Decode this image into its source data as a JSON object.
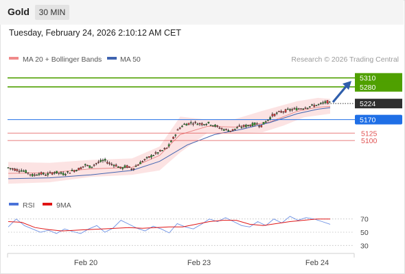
{
  "header": {
    "symbol": "Gold",
    "timeframe": "30 MIN",
    "datetime": "Tuesday, February 24, 2026 2:10:12 AM CET"
  },
  "legend": {
    "ma20_bb": "MA 20 + Bollinger Bands",
    "ma50": "MA 50",
    "copyright": "Research © 2026 Trading Central",
    "ma20_color": "#f08a8a",
    "ma50_color": "#3f63b0"
  },
  "chart_data": [
    {
      "type": "candlestick",
      "title": "",
      "price_range": [
        4935,
        5330
      ],
      "x_ticks": [
        "Feb 20",
        "Feb 23",
        "Feb 24"
      ],
      "levels": [
        {
          "label": "5310",
          "value": 5310,
          "color": "#4fa000",
          "kind": "resistance"
        },
        {
          "label": "5280",
          "value": 5280,
          "color": "#4fa000",
          "kind": "resistance"
        },
        {
          "label": "5224",
          "value": 5224,
          "color": "#333333",
          "kind": "last-price"
        },
        {
          "label": "5170",
          "value": 5170,
          "color": "#1f6fe6",
          "kind": "pivot"
        },
        {
          "label": "5125",
          "value": 5125,
          "color": "#e05050",
          "kind": "support"
        },
        {
          "label": "5100",
          "value": 5100,
          "color": "#e05050",
          "kind": "support"
        }
      ],
      "path_points": [
        [
          0,
          5009
        ],
        [
          6,
          5002
        ],
        [
          10,
          5000
        ],
        [
          14,
          4993
        ],
        [
          18,
          4982
        ],
        [
          22,
          4990
        ],
        [
          28,
          4986
        ],
        [
          34,
          4994
        ],
        [
          40,
          4988
        ],
        [
          46,
          4997
        ],
        [
          52,
          5006
        ],
        [
          56,
          5018
        ],
        [
          60,
          5011
        ],
        [
          64,
          5024
        ],
        [
          70,
          5034
        ],
        [
          74,
          5022
        ],
        [
          78,
          5018
        ],
        [
          82,
          5006
        ],
        [
          86,
          5014
        ],
        [
          90,
          5004
        ],
        [
          94,
          5018
        ],
        [
          98,
          5032
        ],
        [
          104,
          5048
        ],
        [
          110,
          5062
        ],
        [
          116,
          5076
        ],
        [
          120,
          5108
        ],
        [
          124,
          5140
        ],
        [
          128,
          5154
        ],
        [
          134,
          5160
        ],
        [
          140,
          5156
        ],
        [
          146,
          5158
        ],
        [
          150,
          5150
        ],
        [
          156,
          5138
        ],
        [
          162,
          5133
        ],
        [
          168,
          5145
        ],
        [
          174,
          5150
        ],
        [
          180,
          5156
        ],
        [
          184,
          5150
        ],
        [
          188,
          5166
        ],
        [
          192,
          5184
        ],
        [
          198,
          5196
        ],
        [
          204,
          5202
        ],
        [
          210,
          5206
        ],
        [
          216,
          5211
        ],
        [
          222,
          5217
        ],
        [
          228,
          5223
        ],
        [
          232,
          5230
        ],
        [
          234,
          5224
        ]
      ],
      "ma50": [
        [
          0,
          4972
        ],
        [
          30,
          4975
        ],
        [
          60,
          4985
        ],
        [
          90,
          5000
        ],
        [
          110,
          5030
        ],
        [
          130,
          5085
        ],
        [
          150,
          5120
        ],
        [
          170,
          5138
        ],
        [
          190,
          5160
        ],
        [
          210,
          5190
        ],
        [
          225,
          5205
        ],
        [
          234,
          5210
        ]
      ],
      "ma20": [
        [
          0,
          4990
        ],
        [
          30,
          4992
        ],
        [
          60,
          5005
        ],
        [
          90,
          5010
        ],
        [
          110,
          5050
        ],
        [
          125,
          5120
        ],
        [
          145,
          5148
        ],
        [
          165,
          5145
        ],
        [
          190,
          5162
        ],
        [
          210,
          5198
        ],
        [
          225,
          5212
        ],
        [
          234,
          5214
        ]
      ],
      "bb_upper": [
        [
          0,
          5028
        ],
        [
          30,
          5025
        ],
        [
          60,
          5035
        ],
        [
          90,
          5040
        ],
        [
          110,
          5080
        ],
        [
          125,
          5180
        ],
        [
          145,
          5170
        ],
        [
          165,
          5172
        ],
        [
          185,
          5200
        ],
        [
          210,
          5232
        ],
        [
          225,
          5243
        ],
        [
          234,
          5240
        ]
      ],
      "bb_lower": [
        [
          0,
          4955
        ],
        [
          30,
          4960
        ],
        [
          60,
          4978
        ],
        [
          90,
          4985
        ],
        [
          110,
          5000
        ],
        [
          125,
          5060
        ],
        [
          145,
          5126
        ],
        [
          165,
          5125
        ],
        [
          185,
          5128
        ],
        [
          200,
          5150
        ],
        [
          215,
          5178
        ],
        [
          234,
          5190
        ]
      ]
    },
    {
      "type": "line",
      "legend": [
        "RSI",
        "9MA"
      ],
      "legend_colors": [
        "#4a72d8",
        "#e01414"
      ],
      "y_ticks": [
        70,
        50,
        30
      ],
      "ylim": [
        20,
        80
      ],
      "rsi_points": [
        [
          0,
          58
        ],
        [
          6,
          70
        ],
        [
          12,
          60
        ],
        [
          18,
          55
        ],
        [
          24,
          50
        ],
        [
          30,
          53
        ],
        [
          36,
          48
        ],
        [
          42,
          55
        ],
        [
          48,
          51
        ],
        [
          54,
          48
        ],
        [
          60,
          55
        ],
        [
          66,
          60
        ],
        [
          72,
          50
        ],
        [
          78,
          56
        ],
        [
          84,
          68
        ],
        [
          90,
          62
        ],
        [
          96,
          56
        ],
        [
          102,
          52
        ],
        [
          108,
          59
        ],
        [
          114,
          55
        ],
        [
          120,
          49
        ],
        [
          126,
          63
        ],
        [
          132,
          58
        ],
        [
          138,
          55
        ],
        [
          144,
          62
        ],
        [
          150,
          70
        ],
        [
          156,
          66
        ],
        [
          162,
          72
        ],
        [
          168,
          66
        ],
        [
          174,
          60
        ],
        [
          180,
          58
        ],
        [
          186,
          66
        ],
        [
          192,
          60
        ],
        [
          198,
          70
        ],
        [
          204,
          64
        ],
        [
          210,
          74
        ],
        [
          216,
          68
        ],
        [
          222,
          72
        ],
        [
          228,
          70
        ],
        [
          234,
          66
        ],
        [
          240,
          62
        ]
      ],
      "ma9_points": [
        [
          0,
          66
        ],
        [
          10,
          65
        ],
        [
          20,
          57
        ],
        [
          30,
          54
        ],
        [
          40,
          52
        ],
        [
          50,
          53
        ],
        [
          60,
          54
        ],
        [
          70,
          55
        ],
        [
          80,
          56
        ],
        [
          90,
          57
        ],
        [
          100,
          56
        ],
        [
          110,
          57
        ],
        [
          120,
          58
        ],
        [
          130,
          58
        ],
        [
          140,
          62
        ],
        [
          150,
          66
        ],
        [
          160,
          68
        ],
        [
          170,
          68
        ],
        [
          180,
          62
        ],
        [
          190,
          60
        ],
        [
          200,
          63
        ],
        [
          210,
          66
        ],
        [
          220,
          68
        ],
        [
          230,
          70
        ],
        [
          240,
          70
        ]
      ]
    }
  ]
}
